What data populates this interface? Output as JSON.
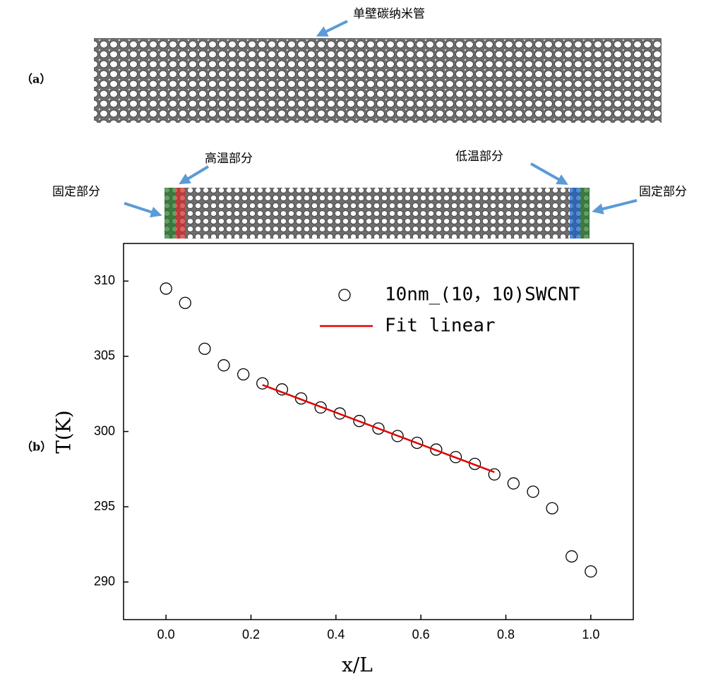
{
  "panel_labels": [
    "（a）",
    "（b）"
  ],
  "annotations": [
    "单壁碳纳米管",
    "高温部分",
    "低温部分",
    "固定部分",
    "固定部分"
  ],
  "chart_data": {
    "type": "scatter",
    "xlabel": "x/L",
    "ylabel": "T(K)",
    "x": [
      0,
      0.045,
      0.091,
      0.136,
      0.182,
      0.227,
      0.273,
      0.318,
      0.364,
      0.409,
      0.455,
      0.5,
      0.545,
      0.591,
      0.636,
      0.682,
      0.727,
      0.773,
      0.818,
      0.864,
      0.909,
      0.955,
      1
    ],
    "series": [
      {
        "name": "10nm_(10，10)SWCNT",
        "color": "#000000",
        "style": "marker",
        "values": [
          309.5,
          308.55,
          305.5,
          304.4,
          303.8,
          303.2,
          302.8,
          302.2,
          301.6,
          301.2,
          300.7,
          300.2,
          299.7,
          299.25,
          298.8,
          298.3,
          297.85,
          297.15,
          296.55,
          296.0,
          294.9,
          291.7,
          290.7
        ]
      },
      {
        "name": "Fit linear",
        "color": "#e00000",
        "style": "line",
        "x": [
          0.227,
          0.773
        ],
        "values": [
          303.1,
          297.3
        ]
      }
    ],
    "xlim": [
      -0.1,
      1.1
    ],
    "ylim": [
      287.5,
      312.5
    ],
    "xticks": [
      {
        "value": 0,
        "label": "0.0"
      },
      0.2,
      0.4,
      0.6,
      0.8,
      {
        "value": 1,
        "label": "1.0"
      }
    ],
    "yticks": [
      290,
      295,
      300,
      305,
      310
    ],
    "legend": "upper right",
    "grid": false
  }
}
